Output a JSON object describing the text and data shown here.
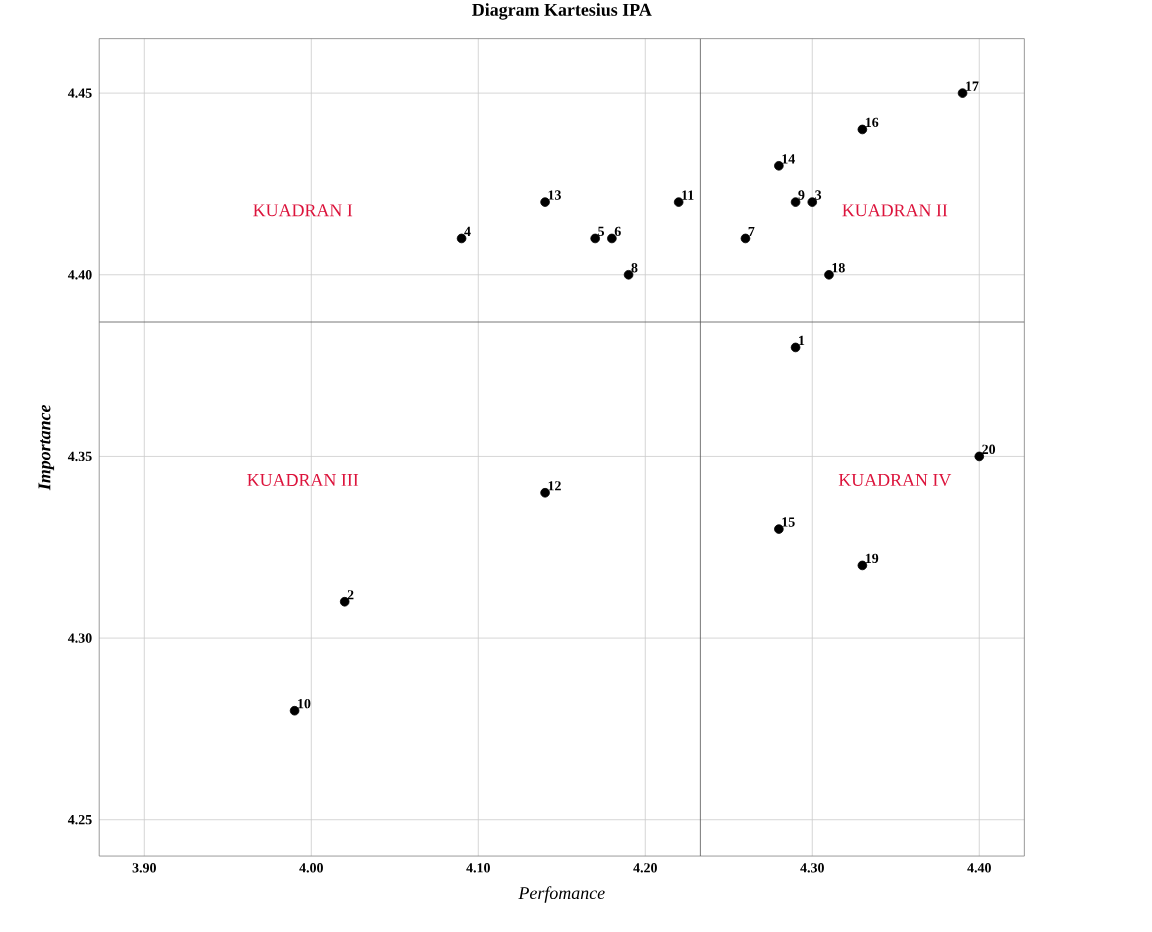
{
  "chart_data": {
    "type": "scatter",
    "title": "Diagram Kartesius IPA",
    "xlabel": "Perfomance",
    "ylabel": "Importance",
    "x": [
      4.29,
      4.02,
      4.3,
      4.09,
      4.17,
      4.18,
      4.26,
      4.19,
      4.29,
      3.99,
      4.22,
      4.14,
      4.14,
      4.28,
      4.28,
      4.33,
      4.39,
      4.31,
      4.33,
      4.4
    ],
    "series": [
      {
        "color": "#000000",
        "values": [
          4.38,
          4.31,
          4.42,
          4.41,
          4.41,
          4.41,
          4.41,
          4.4,
          4.42,
          4.28,
          4.42,
          4.34,
          4.42,
          4.43,
          4.33,
          4.44,
          4.45,
          4.4,
          4.32,
          4.35
        ]
      }
    ],
    "xlim": [
      3.873,
      4.427
    ],
    "ylim": [
      4.24,
      4.465
    ],
    "xticks": [
      {
        "value": 3.9,
        "label": "3.90"
      },
      {
        "value": 4.0,
        "label": "4.00"
      },
      {
        "value": 4.1,
        "label": "4.10"
      },
      {
        "value": 4.2,
        "label": "4.20"
      },
      {
        "value": 4.3,
        "label": "4.30"
      },
      {
        "value": 4.4,
        "label": "4.40"
      }
    ],
    "yticks": [
      4.25,
      {
        "value": 4.3,
        "label": "4.30"
      },
      4.35,
      {
        "value": 4.4,
        "label": "4.40"
      },
      4.45
    ],
    "grid": true,
    "ref_lines": [
      {
        "axis": "x",
        "value": 4.233,
        "color": "#555555"
      },
      {
        "axis": "y",
        "value": 4.387,
        "color": "#555555"
      }
    ],
    "annotations": [
      "KUADRAN I",
      "KUADRAN II",
      "KUADRAN III",
      "KUADRAN IV",
      {
        "text": "1",
        "x": 4.29,
        "y": 4.38
      },
      {
        "text": "2",
        "x": 4.02,
        "y": 4.31
      },
      {
        "text": "3",
        "x": 4.3,
        "y": 4.42
      },
      {
        "text": "4",
        "x": 4.09,
        "y": 4.41
      },
      {
        "text": "5",
        "x": 4.17,
        "y": 4.41
      },
      {
        "text": "6",
        "x": 4.18,
        "y": 4.41
      },
      {
        "text": "7",
        "x": 4.26,
        "y": 4.41
      },
      {
        "text": "8",
        "x": 4.19,
        "y": 4.4
      },
      {
        "text": "9",
        "x": 4.29,
        "y": 4.42
      },
      {
        "text": "10",
        "x": 3.99,
        "y": 4.28
      },
      {
        "text": "11",
        "x": 4.22,
        "y": 4.42
      },
      {
        "text": "12",
        "x": 4.14,
        "y": 4.34
      },
      {
        "text": "13",
        "x": 4.14,
        "y": 4.42
      },
      {
        "text": "14",
        "x": 4.28,
        "y": 4.43
      },
      {
        "text": "15",
        "x": 4.28,
        "y": 4.33
      },
      {
        "text": "16",
        "x": 4.33,
        "y": 4.44
      },
      {
        "text": "17",
        "x": 4.39,
        "y": 4.45
      },
      {
        "text": "18",
        "x": 4.31,
        "y": 4.4
      },
      {
        "text": "19",
        "x": 4.33,
        "y": 4.32
      },
      {
        "text": "20",
        "x": 4.4,
        "y": 4.35
      }
    ]
  }
}
